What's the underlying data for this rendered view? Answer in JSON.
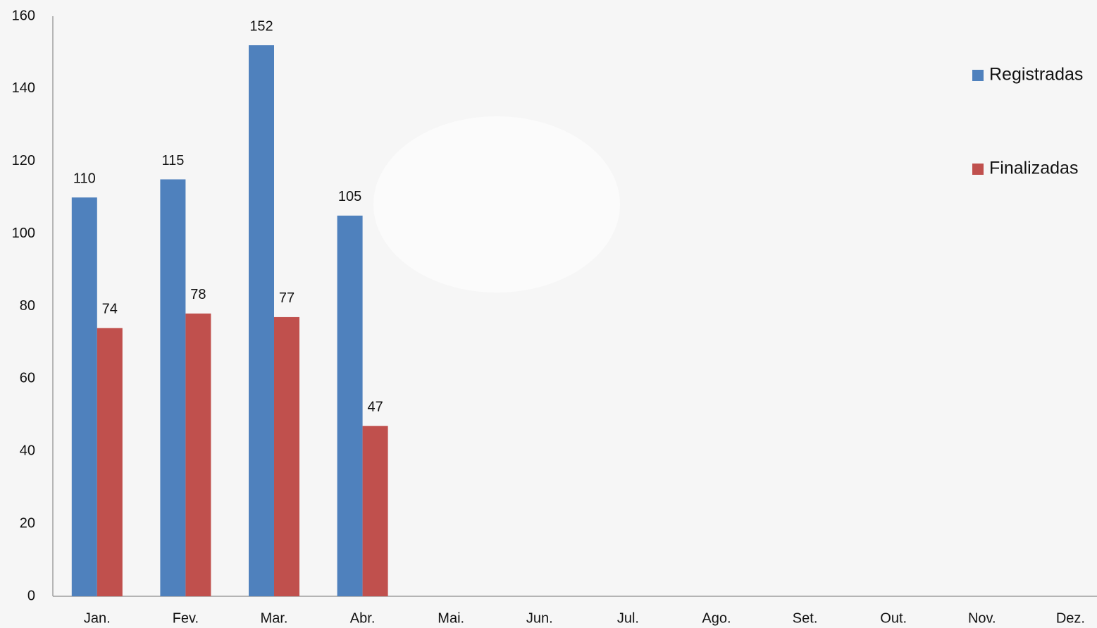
{
  "chart_data": {
    "type": "bar",
    "categories": [
      "Jan.",
      "Fev.",
      "Mar.",
      "Abr.",
      "Mai.",
      "Jun.",
      "Jul.",
      "Ago.",
      "Set.",
      "Out.",
      "Nov.",
      "Dez."
    ],
    "series": [
      {
        "name": "Registradas",
        "color": "#4f81bd",
        "values": [
          110,
          115,
          152,
          105,
          null,
          null,
          null,
          null,
          null,
          null,
          null,
          null
        ]
      },
      {
        "name": "Finalizadas",
        "color": "#c0504d",
        "values": [
          74,
          78,
          77,
          47,
          null,
          null,
          null,
          null,
          null,
          null,
          null,
          null
        ]
      }
    ],
    "ylim": [
      0,
      160
    ],
    "yticks": [
      0,
      20,
      40,
      60,
      80,
      100,
      120,
      140,
      160
    ],
    "legend": "right",
    "grid": false
  }
}
